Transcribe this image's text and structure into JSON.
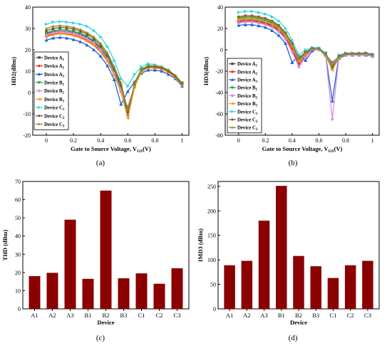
{
  "colors": {
    "A1": "#555555",
    "A2": "#ff2a2a",
    "A3": "#1a5fd6",
    "B1": "#1aa54a",
    "B2": "#d78de0",
    "B3": "#f39a1e",
    "C1": "#2fd6e0",
    "C2": "#8a4a2e",
    "C3": "#8a8a1e",
    "bar": "#8b0000"
  },
  "chart_data": [
    {
      "panel": "(a)",
      "type": "line",
      "xlabel": "Gate to Source Voltage, VGS(V)",
      "ylabel": "HD2(dBm)",
      "xlim": [
        -0.1,
        1.05
      ],
      "ylim": [
        -20,
        40
      ],
      "xticks": [
        0.0,
        0.2,
        0.4,
        0.6,
        0.8,
        1.0
      ],
      "yticks": [
        -20,
        -10,
        0,
        10,
        20,
        30,
        40
      ],
      "legend_position": "left",
      "x": [
        0.0,
        0.05,
        0.1,
        0.15,
        0.2,
        0.25,
        0.3,
        0.35,
        0.4,
        0.45,
        0.5,
        0.55,
        0.6,
        0.65,
        0.7,
        0.75,
        0.8,
        0.85,
        0.9,
        0.95,
        1.0
      ],
      "series": [
        {
          "name": "Device A1",
          "key": "A1",
          "marker": "square",
          "values": [
            27.5,
            28.5,
            28.8,
            28.6,
            28.2,
            27.2,
            25.8,
            23.8,
            20.5,
            16.0,
            9.5,
            2.0,
            -10.5,
            3.5,
            10.0,
            12.0,
            11.5,
            11.0,
            9.5,
            7.5,
            4.5
          ]
        },
        {
          "name": "Device A2",
          "key": "A2",
          "marker": "circle",
          "values": [
            26.5,
            27.5,
            27.8,
            27.6,
            27.0,
            26.0,
            24.5,
            22.5,
            19.5,
            15.0,
            8.5,
            0.5,
            -7.0,
            3.0,
            10.5,
            12.5,
            12.0,
            11.5,
            10.0,
            7.5,
            4.0
          ]
        },
        {
          "name": "Device A3",
          "key": "A3",
          "marker": "triangle-up",
          "values": [
            24.5,
            25.5,
            25.8,
            25.5,
            24.8,
            23.8,
            22.2,
            20.0,
            17.0,
            12.5,
            6.0,
            -5.5,
            0.5,
            5.0,
            9.0,
            10.5,
            10.5,
            10.0,
            8.5,
            6.5,
            3.0
          ]
        },
        {
          "name": "Device B1",
          "key": "B1",
          "marker": "triangle-down",
          "values": [
            28.0,
            29.0,
            29.5,
            29.3,
            28.8,
            27.8,
            26.3,
            24.3,
            21.0,
            16.5,
            10.0,
            2.5,
            -10.0,
            4.5,
            11.0,
            12.5,
            12.0,
            11.5,
            10.0,
            7.5,
            4.0
          ]
        },
        {
          "name": "Device B2",
          "key": "B2",
          "marker": "diamond",
          "values": [
            27.0,
            28.0,
            28.5,
            28.3,
            27.6,
            26.6,
            25.2,
            23.2,
            20.0,
            15.5,
            9.0,
            1.0,
            -8.0,
            3.0,
            10.0,
            12.0,
            11.5,
            11.0,
            9.5,
            7.0,
            3.5
          ]
        },
        {
          "name": "Device B3",
          "key": "B3",
          "marker": "triangle-left",
          "values": [
            26.0,
            27.0,
            27.5,
            27.3,
            26.6,
            25.6,
            24.0,
            22.0,
            18.8,
            14.5,
            8.0,
            0.0,
            -12.0,
            2.5,
            9.5,
            11.5,
            11.5,
            11.0,
            9.5,
            7.0,
            3.5
          ]
        },
        {
          "name": "Device C1",
          "key": "C1",
          "marker": "triangle-right",
          "values": [
            32.0,
            33.0,
            33.2,
            33.0,
            32.6,
            32.0,
            31.0,
            29.0,
            26.0,
            21.5,
            15.0,
            6.5,
            3.0,
            8.5,
            12.0,
            13.5,
            13.0,
            12.0,
            10.5,
            8.0,
            4.5
          ]
        },
        {
          "name": "Device C2",
          "key": "C2",
          "marker": "hexagon",
          "values": [
            29.0,
            30.0,
            30.5,
            30.3,
            29.8,
            28.8,
            27.3,
            25.3,
            22.0,
            17.5,
            11.0,
            3.5,
            -9.0,
            4.0,
            10.5,
            12.0,
            12.0,
            11.5,
            10.0,
            7.5,
            4.0
          ]
        },
        {
          "name": "Device C3",
          "key": "C3",
          "marker": "star",
          "values": [
            30.0,
            31.0,
            31.3,
            31.0,
            30.5,
            29.5,
            28.0,
            26.0,
            23.0,
            18.5,
            12.0,
            4.5,
            -8.5,
            4.0,
            10.5,
            12.5,
            12.5,
            12.0,
            10.5,
            8.0,
            4.5
          ]
        }
      ]
    },
    {
      "panel": "(b)",
      "type": "line",
      "xlabel": "Gate to Source Voltage, VGS(V)",
      "ylabel": "HD3(dBm)",
      "xlim": [
        -0.1,
        1.05
      ],
      "ylim": [
        -80,
        40
      ],
      "xticks": [
        0.0,
        0.2,
        0.4,
        0.6,
        0.8,
        1.0
      ],
      "yticks": [
        -80,
        -60,
        -40,
        -20,
        0,
        20,
        40
      ],
      "legend_position": "right",
      "x": [
        0.0,
        0.05,
        0.1,
        0.15,
        0.2,
        0.25,
        0.3,
        0.35,
        0.4,
        0.45,
        0.5,
        0.55,
        0.6,
        0.65,
        0.7,
        0.75,
        0.8,
        0.85,
        0.9,
        0.95,
        1.0
      ],
      "series": [
        {
          "name": "Device A1",
          "key": "A1",
          "marker": "square",
          "values": [
            27.0,
            28.0,
            28.0,
            27.0,
            25.5,
            23.0,
            19.0,
            12.0,
            2.0,
            -12.0,
            -4.0,
            0.5,
            0.5,
            -3.0,
            -17.0,
            -8.0,
            -5.0,
            -4.5,
            -4.5,
            -4.0,
            -5.0
          ]
        },
        {
          "name": "Device A2",
          "key": "A2",
          "marker": "circle",
          "values": [
            26.0,
            27.0,
            27.0,
            26.0,
            24.5,
            22.0,
            18.0,
            11.0,
            0.0,
            -14.0,
            -6.0,
            1.0,
            0.0,
            -4.0,
            -12.0,
            -6.0,
            -4.0,
            -4.0,
            -4.0,
            -3.5,
            -5.0
          ]
        },
        {
          "name": "Device A3",
          "key": "A3",
          "marker": "triangle-up",
          "values": [
            23.0,
            23.5,
            23.5,
            22.5,
            21.0,
            18.0,
            13.5,
            6.0,
            -12.0,
            -5.0,
            -10.0,
            -1.0,
            1.0,
            -5.0,
            -48.0,
            -5.0,
            -5.0,
            -5.0,
            -5.0,
            -5.0,
            -6.0
          ]
        },
        {
          "name": "Device B1",
          "key": "B1",
          "marker": "triangle-down",
          "values": [
            29.0,
            30.0,
            30.0,
            29.0,
            27.5,
            25.0,
            21.0,
            14.0,
            4.0,
            -10.0,
            -3.0,
            1.0,
            0.5,
            -6.0,
            -18.0,
            -8.0,
            -4.0,
            -4.0,
            -4.0,
            -3.5,
            -5.0
          ]
        },
        {
          "name": "Device B2",
          "key": "B2",
          "marker": "diamond",
          "values": [
            25.0,
            26.0,
            26.0,
            25.0,
            23.5,
            21.0,
            17.0,
            10.0,
            -2.0,
            -16.0,
            -7.0,
            0.5,
            0.0,
            -5.0,
            -65.0,
            -6.0,
            -5.0,
            -5.0,
            -5.0,
            -4.5,
            -6.0
          ]
        },
        {
          "name": "Device B3",
          "key": "B3",
          "marker": "triangle-left",
          "values": [
            28.0,
            29.0,
            29.0,
            28.0,
            26.5,
            24.0,
            20.0,
            13.0,
            3.0,
            -11.0,
            -4.0,
            1.5,
            1.0,
            -5.0,
            -19.0,
            -7.0,
            -4.0,
            -4.0,
            -4.0,
            -3.5,
            -5.0
          ]
        },
        {
          "name": "Device C1",
          "key": "C1",
          "marker": "triangle-right",
          "values": [
            35.0,
            36.0,
            36.0,
            35.0,
            33.5,
            31.0,
            27.0,
            20.0,
            9.0,
            -5.0,
            0.0,
            2.0,
            2.0,
            -3.0,
            -14.0,
            -5.0,
            -3.0,
            -3.0,
            -3.0,
            -3.0,
            -4.0
          ]
        },
        {
          "name": "Device C2",
          "key": "C2",
          "marker": "hexagon",
          "values": [
            31.0,
            32.0,
            32.0,
            31.0,
            29.5,
            27.0,
            23.0,
            16.0,
            6.0,
            -8.0,
            -2.0,
            1.5,
            1.0,
            -4.0,
            -16.0,
            -6.0,
            -3.5,
            -3.5,
            -3.5,
            -3.0,
            -4.5
          ]
        },
        {
          "name": "Device C3",
          "key": "C3",
          "marker": "star",
          "values": [
            30.0,
            31.0,
            31.0,
            30.0,
            28.5,
            26.0,
            22.0,
            15.0,
            5.0,
            -9.0,
            -3.0,
            1.0,
            1.0,
            -4.5,
            -15.0,
            -6.5,
            -4.0,
            -4.0,
            -4.0,
            -3.5,
            -5.0
          ]
        }
      ]
    },
    {
      "panel": "(c)",
      "type": "bar",
      "xlabel": "Device",
      "ylabel": "THD (dBm)",
      "ylim": [
        0,
        70
      ],
      "yticks": [
        0,
        10,
        20,
        30,
        40,
        50,
        60,
        70
      ],
      "categories": [
        "A1",
        "A2",
        "A3",
        "B1",
        "B2",
        "B3",
        "C1",
        "C2",
        "C3"
      ],
      "values": [
        18.0,
        19.8,
        49.0,
        16.5,
        65.0,
        16.8,
        19.5,
        13.8,
        22.3
      ]
    },
    {
      "panel": "(d)",
      "type": "bar",
      "xlabel": "Device",
      "ylabel": "IMD3 (dBm)",
      "ylim": [
        0,
        260
      ],
      "yticks": [
        0,
        50,
        100,
        150,
        200,
        250
      ],
      "categories": [
        "A1",
        "A2",
        "A3",
        "B1",
        "B2",
        "B3",
        "C1",
        "C2",
        "C3"
      ],
      "values": [
        89,
        98,
        180,
        251,
        108,
        87,
        63,
        89,
        98
      ]
    }
  ]
}
